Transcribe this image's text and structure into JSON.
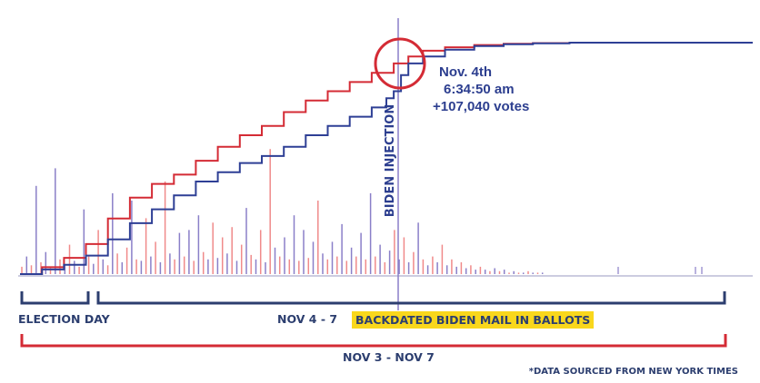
{
  "chart_data": {
    "type": "line",
    "title": "",
    "xlabel": "",
    "ylabel": "",
    "grid": false,
    "series": [
      {
        "color": "#d42b35",
        "x": [
          0,
          0.03,
          0.06,
          0.09,
          0.12,
          0.15,
          0.18,
          0.21,
          0.24,
          0.27,
          0.3,
          0.33,
          0.36,
          0.39,
          0.42,
          0.45,
          0.48,
          0.51,
          0.53,
          0.55,
          0.58,
          0.62,
          0.66,
          0.7,
          0.75,
          0.8,
          0.85,
          0.9,
          0.95,
          1.0
        ],
        "y": [
          0,
          0.03,
          0.07,
          0.13,
          0.24,
          0.33,
          0.39,
          0.43,
          0.49,
          0.55,
          0.6,
          0.64,
          0.7,
          0.75,
          0.79,
          0.83,
          0.87,
          0.91,
          0.94,
          0.965,
          0.98,
          0.99,
          0.995,
          0.998,
          1.0,
          1.0,
          1.0,
          1.0,
          1.0,
          1.0
        ]
      },
      {
        "color": "#2e3f95",
        "x": [
          0,
          0.03,
          0.06,
          0.09,
          0.12,
          0.15,
          0.18,
          0.21,
          0.24,
          0.27,
          0.3,
          0.33,
          0.36,
          0.39,
          0.42,
          0.45,
          0.48,
          0.5,
          0.51,
          0.52,
          0.53,
          0.55,
          0.58,
          0.62,
          0.66,
          0.7,
          0.75,
          0.8,
          0.9,
          1.0
        ],
        "y": [
          0,
          0.02,
          0.04,
          0.08,
          0.15,
          0.22,
          0.28,
          0.34,
          0.4,
          0.44,
          0.48,
          0.51,
          0.55,
          0.6,
          0.64,
          0.68,
          0.72,
          0.76,
          0.79,
          0.86,
          0.91,
          0.94,
          0.97,
          0.985,
          0.993,
          0.997,
          1.0,
          1.0,
          1.0,
          1.0
        ]
      }
    ],
    "spikes": {
      "colors": [
        "#f08a8a",
        "#8a7fc8"
      ],
      "values": [
        0.05,
        0.12,
        0.06,
        0.6,
        0.08,
        0.15,
        0.04,
        0.72,
        0.1,
        0.06,
        0.2,
        0.09,
        0.05,
        0.44,
        0.12,
        0.07,
        0.3,
        0.1,
        0.06,
        0.55,
        0.14,
        0.08,
        0.18,
        0.5,
        0.1,
        0.09,
        0.38,
        0.12,
        0.22,
        0.08,
        0.63,
        0.14,
        0.1,
        0.28,
        0.12,
        0.3,
        0.09,
        0.4,
        0.15,
        0.1,
        0.35,
        0.11,
        0.25,
        0.14,
        0.32,
        0.09,
        0.2,
        0.45,
        0.13,
        0.1,
        0.3,
        0.08,
        0.85,
        0.18,
        0.12,
        0.25,
        0.1,
        0.4,
        0.09,
        0.3,
        0.11,
        0.22,
        0.5,
        0.14,
        0.1,
        0.22,
        0.12,
        0.34,
        0.09,
        0.18,
        0.12,
        0.28,
        0.1,
        0.55,
        0.12,
        0.2,
        0.08,
        0.16,
        0.3,
        0.1,
        0.25,
        0.08,
        0.15,
        0.35,
        0.1,
        0.06,
        0.12,
        0.08,
        0.2,
        0.06,
        0.1,
        0.05,
        0.08,
        0.04,
        0.06,
        0.03,
        0.05,
        0.03,
        0.02,
        0.04,
        0.02,
        0.03,
        0.01,
        0.02,
        0.01,
        0.01,
        0.02,
        0.01,
        0.01,
        0.01
      ]
    }
  },
  "annotations": {
    "date": "Nov. 4th",
    "time": "6:34:50 am",
    "votes": "+107,040 votes",
    "vertical_label": "BIDEN INJECTION",
    "highlight_color": "#d42b35"
  },
  "brackets": {
    "election_day": "ELECTION DAY",
    "nov_4_7": "NOV 4 - 7",
    "backdated": "BACKDATED BIDEN MAIL IN BALLOTS",
    "nov_3_7": "NOV 3 - NOV 7",
    "navy": "#2c3e6f",
    "red": "#d42b35",
    "highlight": "#f9d71c"
  },
  "footnote": "*DATA SOURCED FROM NEW YORK TIMES"
}
